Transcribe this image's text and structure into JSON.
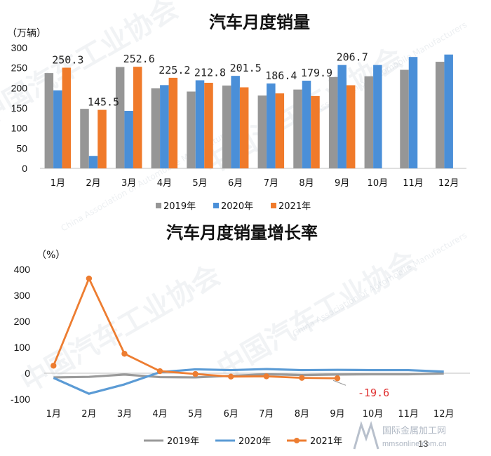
{
  "chart_data": [
    {
      "type": "bar",
      "title": "汽车月度销量",
      "unit_label": "（万辆）",
      "categories": [
        "1月",
        "2月",
        "3月",
        "4月",
        "5月",
        "6月",
        "7月",
        "8月",
        "9月",
        "10月",
        "11月",
        "12月"
      ],
      "ylim": [
        0,
        300
      ],
      "yticks": [
        0,
        50,
        100,
        150,
        200,
        250,
        300
      ],
      "grid": false,
      "legend": "bottom",
      "series": [
        {
          "name": "2019年",
          "color": "#969696",
          "values": [
            237,
            148,
            252,
            199,
            191,
            206,
            181,
            196,
            227,
            229,
            245,
            265
          ]
        },
        {
          "name": "2020年",
          "color": "#4a8fd8",
          "values": [
            194,
            31,
            143,
            207,
            219,
            230,
            211,
            218,
            257,
            257,
            277,
            283
          ]
        },
        {
          "name": "2021年",
          "color": "#f07a2a",
          "values": [
            250.3,
            145.5,
            252.6,
            225.2,
            212.8,
            201.5,
            186.4,
            179.9,
            206.7,
            null,
            null,
            null
          ]
        }
      ],
      "data_labels": [
        "250.3",
        "145.5",
        "252.6",
        "225.2",
        "212.8",
        "201.5",
        "186.4",
        "179.9",
        "206.7"
      ]
    },
    {
      "type": "line",
      "title": "汽车月度销量增长率",
      "unit_label": "（%）",
      "categories": [
        "1月",
        "2月",
        "3月",
        "4月",
        "5月",
        "6月",
        "7月",
        "8月",
        "9月",
        "10月",
        "11月",
        "12月"
      ],
      "ylim": [
        -100,
        400
      ],
      "yticks": [
        -100,
        0,
        100,
        200,
        300,
        400
      ],
      "grid": false,
      "legend": "bottom",
      "series": [
        {
          "name": "2019年",
          "color": "#9a9a9a",
          "values": [
            -16,
            -14,
            -5,
            -15,
            -16,
            -10,
            -4,
            -7,
            -5,
            -4,
            -4,
            -1
          ]
        },
        {
          "name": "2020年",
          "color": "#5b9bd5",
          "values": [
            -18,
            -79,
            -43,
            4,
            15,
            12,
            16,
            12,
            13,
            12,
            12,
            6
          ]
        },
        {
          "name": "2021年",
          "color": "#ed7d31",
          "values": [
            29,
            365,
            75,
            8,
            -3,
            -13,
            -12,
            -18,
            -19.6,
            null,
            null,
            null
          ]
        }
      ],
      "annotation": "-19.6"
    }
  ],
  "watermark": {
    "cn": "中国汽车工业协会",
    "en": "China Association of Automobile Manufacturers"
  },
  "footer": {
    "page_number": "13",
    "logo_cn": "国际金属加工网",
    "logo_en": "mmsonline.com.cn"
  }
}
